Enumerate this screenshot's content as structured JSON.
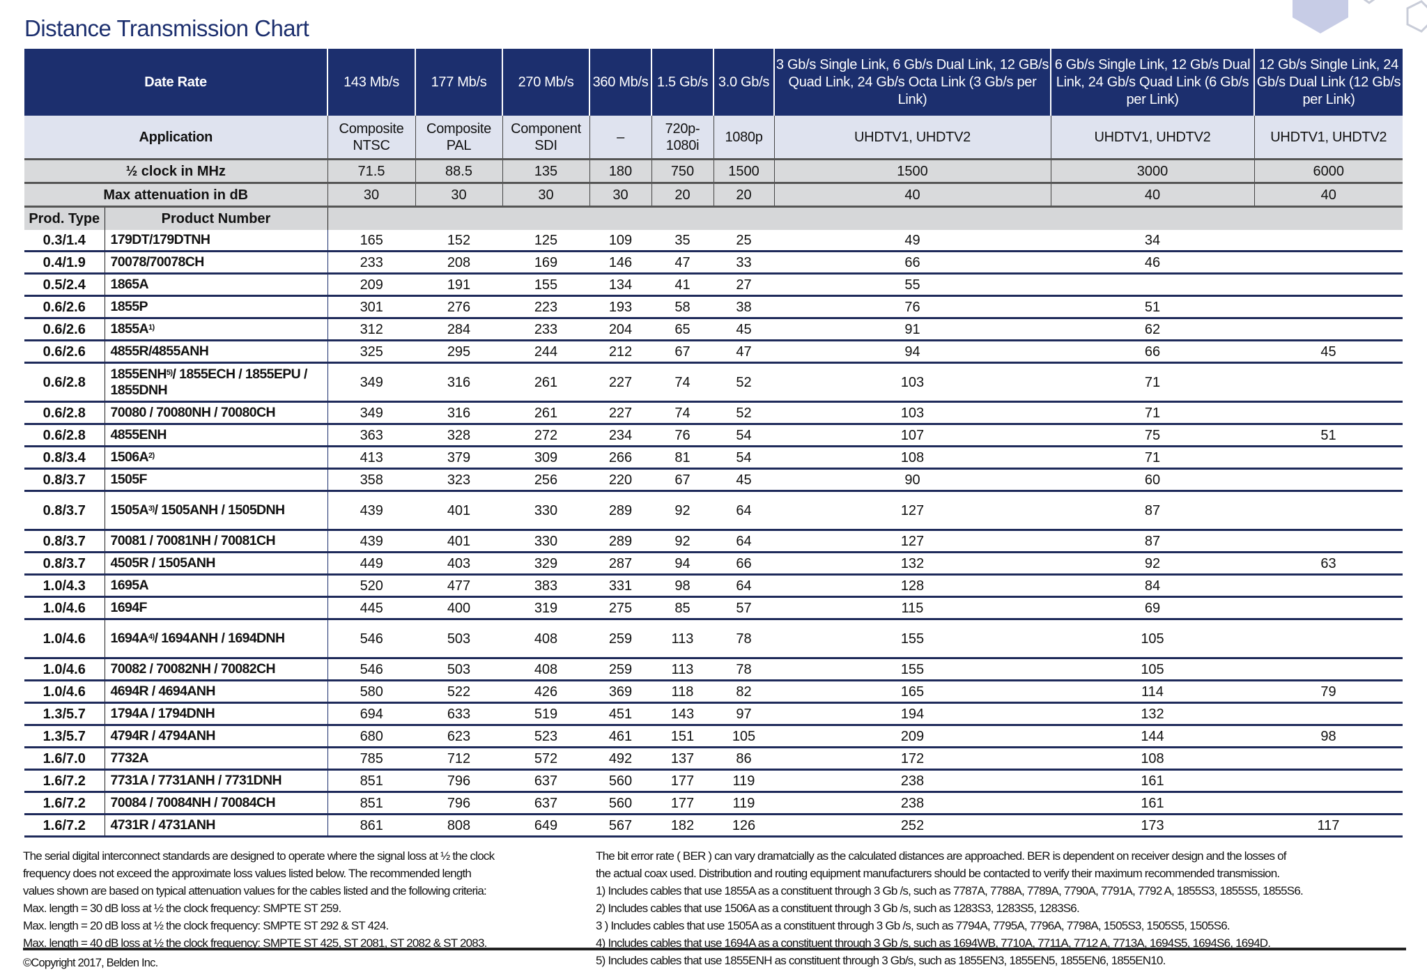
{
  "title": "Distance Transmission Chart",
  "colors": {
    "header_blue": "#1c2f6e",
    "application_row": "#dfe3ef",
    "gray_rows": "#d9dadc",
    "row_rule": "#1e2a5a"
  },
  "header": {
    "data_rate_label": "Date Rate",
    "rates": [
      "143 Mb/s",
      "177 Mb/s",
      "270 Mb/s",
      "360 Mb/s",
      "1.5 Gb/s",
      "3.0 Gb/s",
      "3 Gb/s Single Link, 6 Gb/s Dual Link, 12 GB/s Quad Link, 24 Gb/s Octa Link (3 Gb/s per Link)",
      "6 Gb/s Single Link, 12 Gb/s Dual Link, 24 Gb/s Quad Link (6 Gb/s per Link)",
      "12 Gb/s Single Link, 24 Gb/s Dual Link (12 Gb/s per Link)"
    ],
    "application_label": "Application",
    "applications": [
      "Composite NTSC",
      "Composite PAL",
      "Component SDI",
      "–",
      "720p-1080i",
      "1080p",
      "UHDTV1, UHDTV2",
      "UHDTV1, UHDTV2",
      "UHDTV1, UHDTV2"
    ],
    "clock_label": "½ clock in MHz",
    "clock": [
      "71.5",
      "88.5",
      "135",
      "180",
      "750",
      "1500",
      "1500",
      "3000",
      "6000"
    ],
    "atten_label": "Max attenuation in dB",
    "atten": [
      "30",
      "30",
      "30",
      "30",
      "20",
      "20",
      "40",
      "40",
      "40"
    ],
    "prod_type_label": "Prod. Type",
    "product_number_label": "Product Number"
  },
  "rows": [
    {
      "type": "0.3/1.4",
      "product": {
        "pre": "179DT/179DTNH",
        "sup": "",
        "post": ""
      },
      "values": [
        "165",
        "152",
        "125",
        "109",
        "35",
        "25",
        "49",
        "34",
        ""
      ]
    },
    {
      "type": "0.4/1.9",
      "product": {
        "pre": "70078/70078CH",
        "sup": "",
        "post": ""
      },
      "values": [
        "233",
        "208",
        "169",
        "146",
        "47",
        "33",
        "66",
        "46",
        ""
      ]
    },
    {
      "type": "0.5/2.4",
      "product": {
        "pre": "1865A",
        "sup": "",
        "post": ""
      },
      "values": [
        "209",
        "191",
        "155",
        "134",
        "41",
        "27",
        "55",
        "",
        ""
      ]
    },
    {
      "type": "0.6/2.6",
      "product": {
        "pre": "1855P",
        "sup": "",
        "post": ""
      },
      "values": [
        "301",
        "276",
        "223",
        "193",
        "58",
        "38",
        "76",
        "51",
        ""
      ]
    },
    {
      "type": "0.6/2.6",
      "product": {
        "pre": "1855A",
        "sup": "1)",
        "post": ""
      },
      "values": [
        "312",
        "284",
        "233",
        "204",
        "65",
        "45",
        "91",
        "62",
        ""
      ]
    },
    {
      "type": "0.6/2.6",
      "product": {
        "pre": "4855R/4855ANH",
        "sup": "",
        "post": ""
      },
      "values": [
        "325",
        "295",
        "244",
        "212",
        "67",
        "47",
        "94",
        "66",
        "45"
      ]
    },
    {
      "type": "0.6/2.8",
      "product": {
        "pre": "1855ENH",
        "sup": "5)",
        "post": "/ 1855ECH / 1855EPU / 1855DNH"
      },
      "values": [
        "349",
        "316",
        "261",
        "227",
        "74",
        "52",
        "103",
        "71",
        ""
      ]
    },
    {
      "type": "0.6/2.8",
      "product": {
        "pre": "70080 / 70080NH / 70080CH",
        "sup": "",
        "post": ""
      },
      "values": [
        "349",
        "316",
        "261",
        "227",
        "74",
        "52",
        "103",
        "71",
        ""
      ]
    },
    {
      "type": "0.6/2.8",
      "product": {
        "pre": "4855ENH",
        "sup": "",
        "post": ""
      },
      "values": [
        "363",
        "328",
        "272",
        "234",
        "76",
        "54",
        "107",
        "75",
        "51"
      ]
    },
    {
      "type": "0.8/3.4",
      "product": {
        "pre": "1506A",
        "sup": "2)",
        "post": ""
      },
      "values": [
        "413",
        "379",
        "309",
        "266",
        "81",
        "54",
        "108",
        "71",
        ""
      ]
    },
    {
      "type": "0.8/3.7",
      "product": {
        "pre": "1505F",
        "sup": "",
        "post": ""
      },
      "values": [
        "358",
        "323",
        "256",
        "220",
        "67",
        "45",
        "90",
        "60",
        ""
      ]
    },
    {
      "type": "0.8/3.7",
      "product": {
        "pre": "1505A",
        "sup": "3)",
        "post": "/ 1505ANH / 1505DNH"
      },
      "values": [
        "439",
        "401",
        "330",
        "289",
        "92",
        "64",
        "127",
        "87",
        ""
      ]
    },
    {
      "type": "0.8/3.7",
      "product": {
        "pre": "70081 / 70081NH / 70081CH",
        "sup": "",
        "post": ""
      },
      "values": [
        "439",
        "401",
        "330",
        "289",
        "92",
        "64",
        "127",
        "87",
        ""
      ]
    },
    {
      "type": "0.8/3.7",
      "product": {
        "pre": "4505R / 1505ANH",
        "sup": "",
        "post": ""
      },
      "values": [
        "449",
        "403",
        "329",
        "287",
        "94",
        "66",
        "132",
        "92",
        "63"
      ]
    },
    {
      "type": "1.0/4.3",
      "product": {
        "pre": "1695A",
        "sup": "",
        "post": ""
      },
      "values": [
        "520",
        "477",
        "383",
        "331",
        "98",
        "64",
        "128",
        "84",
        ""
      ]
    },
    {
      "type": "1.0/4.6",
      "product": {
        "pre": "1694F",
        "sup": "",
        "post": ""
      },
      "values": [
        "445",
        "400",
        "319",
        "275",
        "85",
        "57",
        "115",
        "69",
        ""
      ]
    },
    {
      "type": "1.0/4.6",
      "product": {
        "pre": "1694A",
        "sup": "4)",
        "post": "/ 1694ANH / 1694DNH"
      },
      "values": [
        "546",
        "503",
        "408",
        "259",
        "113",
        "78",
        "155",
        "105",
        ""
      ]
    },
    {
      "type": "1.0/4.6",
      "product": {
        "pre": "70082 / 70082NH / 70082CH",
        "sup": "",
        "post": ""
      },
      "values": [
        "546",
        "503",
        "408",
        "259",
        "113",
        "78",
        "155",
        "105",
        ""
      ]
    },
    {
      "type": "1.0/4.6",
      "product": {
        "pre": "4694R / 4694ANH",
        "sup": "",
        "post": ""
      },
      "values": [
        "580",
        "522",
        "426",
        "369",
        "118",
        "82",
        "165",
        "114",
        "79"
      ]
    },
    {
      "type": "1.3/5.7",
      "product": {
        "pre": "1794A / 1794DNH",
        "sup": "",
        "post": ""
      },
      "values": [
        "694",
        "633",
        "519",
        "451",
        "143",
        "97",
        "194",
        "132",
        ""
      ]
    },
    {
      "type": "1.3/5.7",
      "product": {
        "pre": "4794R / 4794ANH",
        "sup": "",
        "post": ""
      },
      "values": [
        "680",
        "623",
        "523",
        "461",
        "151",
        "105",
        "209",
        "144",
        "98"
      ]
    },
    {
      "type": "1.6/7.0",
      "product": {
        "pre": "7732A",
        "sup": "",
        "post": ""
      },
      "values": [
        "785",
        "712",
        "572",
        "492",
        "137",
        "86",
        "172",
        "108",
        ""
      ]
    },
    {
      "type": "1.6/7.2",
      "product": {
        "pre": "7731A / 7731ANH / 7731DNH",
        "sup": "",
        "post": ""
      },
      "values": [
        "851",
        "796",
        "637",
        "560",
        "177",
        "119",
        "238",
        "161",
        ""
      ]
    },
    {
      "type": "1.6/7.2",
      "product": {
        "pre": "70084 / 70084NH / 70084CH",
        "sup": "",
        "post": ""
      },
      "values": [
        "851",
        "796",
        "637",
        "560",
        "177",
        "119",
        "238",
        "161",
        ""
      ]
    },
    {
      "type": "1.6/7.2",
      "product": {
        "pre": "4731R / 4731ANH",
        "sup": "",
        "post": ""
      },
      "values": [
        "861",
        "808",
        "649",
        "567",
        "182",
        "126",
        "252",
        "173",
        "117"
      ]
    }
  ],
  "notes_left": [
    "The serial digital interconnect standards are designed to operate where the signal loss at ½ the clock",
    "frequency does not exceed the approximate loss values listed below. The recommended length",
    "values shown are based on typical attenuation values for the cables listed and the following criteria:",
    "Max. length = 30 dB loss at ½ the clock frequency: SMPTE ST 259.",
    "Max. length = 20 dB loss at ½ the clock frequency: SMPTE ST 292 & ST 424.",
    "Max. length = 40 dB loss at ½ the clock frequency: SMPTE ST 425, ST 2081, ST 2082 & ST 2083."
  ],
  "copyright": "©Copyright 2017, Belden Inc.",
  "notes_right": [
    "The bit error rate ( BER ) can vary dramatcially as the calculated distances are approached. BER is dependent on receiver design and the losses of",
    "the actual coax used. Distribution and routing equipment manufacturers should be contacted to verify their maximum recommended transmission.",
    "1) Includes cables that use 1855A as a constituent through 3 Gb /s, such as 7787A, 7788A, 7789A, 7790A, 7791A, 7792 A, 1855S3, 1855S5, 1855S6.",
    "2) Includes cables that use 1506A as a constituent through 3 Gb /s, such as 1283S3, 1283S5, 1283S6.",
    "3 ) Includes cables that use 1505A as a constituent through 3 Gb /s, such as 7794A, 7795A, 7796A, 7798A, 1505S3, 1505S5, 1505S6.",
    "4) Includes cables that use 1694A as a constituent through 3 Gb /s, such as 1694WB, 7710A, 7711A, 7712 A, 7713A, 1694S5, 1694S6, 1694D.",
    "5) Includes cables that use 1855ENH as constituent through 3 Gb/s, such as 1855EN3, 1855EN5, 1855EN6, 1855EN10."
  ]
}
